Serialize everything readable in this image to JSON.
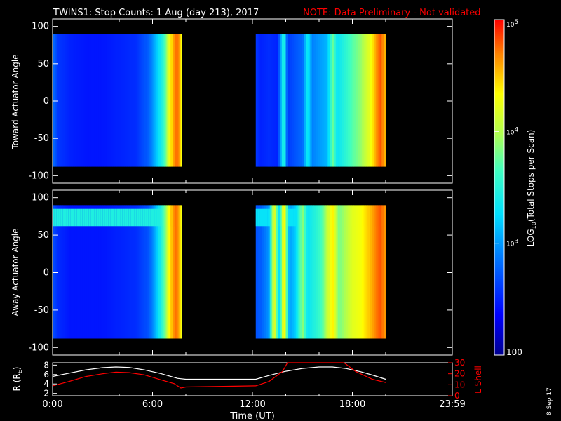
{
  "title": {
    "main": "TWINS1: Stop Counts:  1 Aug (day 213), 2017",
    "note": "NOTE: Data Preliminary - Not validated"
  },
  "date_stamp": "8 Sep 17",
  "colors": {
    "background": "#000000",
    "axes": "#ffffff",
    "note": "#ff0000",
    "r_line": "#ffffff",
    "lshell_line": "#ff0000"
  },
  "chart_data": [
    {
      "type": "heatmap",
      "ylabel": "Toward Actuator Angle",
      "ylim": [
        -110,
        110
      ],
      "yticks": [
        "100",
        "50",
        "0",
        "-50",
        "-100"
      ],
      "ytick_values": [
        100,
        50,
        0,
        -50,
        -100
      ],
      "xlim": [
        0,
        24
      ],
      "data_blocks_hours": [
        [
          0,
          7.75
        ],
        [
          12.2,
          20
        ]
      ],
      "angle_range": [
        -88,
        90
      ],
      "time_profile_log10": [
        [
          0.0,
          2.85
        ],
        [
          0.3,
          2.6
        ],
        [
          1.0,
          2.5
        ],
        [
          2.0,
          2.45
        ],
        [
          3.0,
          2.45
        ],
        [
          4.0,
          2.5
        ],
        [
          5.0,
          2.55
        ],
        [
          5.7,
          2.75
        ],
        [
          6.0,
          2.95
        ],
        [
          6.3,
          3.2
        ],
        [
          6.6,
          3.5
        ],
        [
          6.8,
          3.8
        ],
        [
          7.0,
          4.2
        ],
        [
          7.2,
          4.55
        ],
        [
          7.4,
          4.75
        ],
        [
          7.6,
          4.7
        ],
        [
          7.75,
          4.2
        ],
        [
          12.2,
          2.6
        ],
        [
          12.5,
          2.5
        ],
        [
          13.0,
          2.55
        ],
        [
          13.5,
          2.5
        ],
        [
          13.9,
          3.6
        ],
        [
          14.1,
          2.6
        ],
        [
          14.5,
          2.7
        ],
        [
          15.0,
          2.8
        ],
        [
          15.3,
          3.4
        ],
        [
          15.6,
          2.9
        ],
        [
          16.0,
          3.0
        ],
        [
          16.5,
          3.1
        ],
        [
          16.8,
          3.8
        ],
        [
          17.1,
          3.3
        ],
        [
          17.5,
          3.5
        ],
        [
          18.0,
          3.7
        ],
        [
          18.5,
          3.9
        ],
        [
          19.0,
          4.2
        ],
        [
          19.4,
          4.6
        ],
        [
          19.7,
          4.8
        ],
        [
          20.0,
          4.5
        ]
      ]
    },
    {
      "type": "heatmap",
      "ylabel": "Away Actuator Angle",
      "ylim": [
        -110,
        110
      ],
      "yticks": [
        "100",
        "50",
        "0",
        "-50",
        "-100"
      ],
      "ytick_values": [
        100,
        50,
        0,
        -50,
        -100
      ],
      "xlim": [
        0,
        24
      ],
      "data_blocks_hours": [
        [
          0,
          7.75
        ],
        [
          12.2,
          20
        ]
      ],
      "angle_range": [
        -88,
        90
      ],
      "enhanced_band_angle": [
        62,
        85
      ],
      "time_profile_log10": [
        [
          0.0,
          2.7
        ],
        [
          0.3,
          2.55
        ],
        [
          1.0,
          2.45
        ],
        [
          2.0,
          2.45
        ],
        [
          3.0,
          2.45
        ],
        [
          4.0,
          2.5
        ],
        [
          5.0,
          2.55
        ],
        [
          5.7,
          2.7
        ],
        [
          6.0,
          2.9
        ],
        [
          6.3,
          3.2
        ],
        [
          6.6,
          3.6
        ],
        [
          6.8,
          3.9
        ],
        [
          7.0,
          4.3
        ],
        [
          7.2,
          4.6
        ],
        [
          7.4,
          4.75
        ],
        [
          7.6,
          4.6
        ],
        [
          7.75,
          4.2
        ],
        [
          12.2,
          2.7
        ],
        [
          12.5,
          2.75
        ],
        [
          13.0,
          3.0
        ],
        [
          13.3,
          4.3
        ],
        [
          13.6,
          3.2
        ],
        [
          13.9,
          4.5
        ],
        [
          14.2,
          3.0
        ],
        [
          14.6,
          3.2
        ],
        [
          15.0,
          3.9
        ],
        [
          15.3,
          3.3
        ],
        [
          15.8,
          3.5
        ],
        [
          16.2,
          3.7
        ],
        [
          16.8,
          4.4
        ],
        [
          17.2,
          3.8
        ],
        [
          17.6,
          4.0
        ],
        [
          18.0,
          4.2
        ],
        [
          18.5,
          4.3
        ],
        [
          19.0,
          4.5
        ],
        [
          19.4,
          4.7
        ],
        [
          19.7,
          4.8
        ],
        [
          20.0,
          4.6
        ]
      ]
    },
    {
      "type": "line",
      "ylabel": "R (R",
      "ylabel_sub": "E",
      "ylabel_end": ")",
      "ylim": [
        1.5,
        8.5
      ],
      "yticks": [
        "8",
        "6",
        "4",
        "2"
      ],
      "ytick_values": [
        8,
        6,
        4,
        2
      ],
      "y2label": "L Shell",
      "y2lim": [
        0,
        30
      ],
      "y2ticks": [
        "30",
        "20",
        "10",
        "0"
      ],
      "y2tick_values": [
        30,
        20,
        10,
        0
      ],
      "xlabel": "Time (UT)",
      "xlim": [
        0,
        24
      ],
      "xticks": [
        "0:00",
        "6:00",
        "12:00",
        "18:00",
        "23:59"
      ],
      "xtick_values": [
        0,
        6,
        12,
        18,
        24
      ],
      "series": [
        {
          "axis": "left",
          "values": [
            [
              0,
              5.6
            ],
            [
              1,
              6.3
            ],
            [
              2,
              7.0
            ],
            [
              3,
              7.45
            ],
            [
              3.8,
              7.6
            ],
            [
              4.6,
              7.5
            ],
            [
              5.5,
              7.0
            ],
            [
              6.5,
              6.2
            ],
            [
              7.5,
              5.2
            ],
            [
              8,
              5.0
            ],
            [
              12.2,
              5.0
            ],
            [
              13,
              5.8
            ],
            [
              14,
              6.7
            ],
            [
              15,
              7.3
            ],
            [
              16,
              7.6
            ],
            [
              16.8,
              7.6
            ],
            [
              17.6,
              7.3
            ],
            [
              18.5,
              6.6
            ],
            [
              19.2,
              5.9
            ],
            [
              20,
              5.0
            ]
          ]
        },
        {
          "axis": "right",
          "values": [
            [
              0,
              9
            ],
            [
              1,
              13
            ],
            [
              2,
              17.5
            ],
            [
              3,
              20
            ],
            [
              3.8,
              21.5
            ],
            [
              4.6,
              21
            ],
            [
              5.5,
              19
            ],
            [
              6.5,
              14.5
            ],
            [
              7.3,
              11
            ],
            [
              7.7,
              7
            ],
            [
              8,
              8
            ],
            [
              12.2,
              9
            ],
            [
              13,
              13
            ],
            [
              13.8,
              22
            ],
            [
              14.1,
              31
            ],
            [
              17.5,
              31
            ],
            [
              18.2,
              22
            ],
            [
              19.2,
              15
            ],
            [
              20,
              12
            ]
          ]
        }
      ]
    }
  ],
  "colorbar": {
    "label_prefix": "LOG",
    "label_sub": "10",
    "label_suffix": "(Total Stops per Scan)",
    "log_min": 2,
    "log_max": 5,
    "ticks": [
      {
        "base": "10",
        "exp": "5",
        "value": 5
      },
      {
        "base": "10",
        "exp": "4",
        "value": 4
      },
      {
        "base": "10",
        "exp": "3",
        "value": 3
      },
      {
        "base": "100",
        "exp": "",
        "value": 2
      }
    ]
  }
}
